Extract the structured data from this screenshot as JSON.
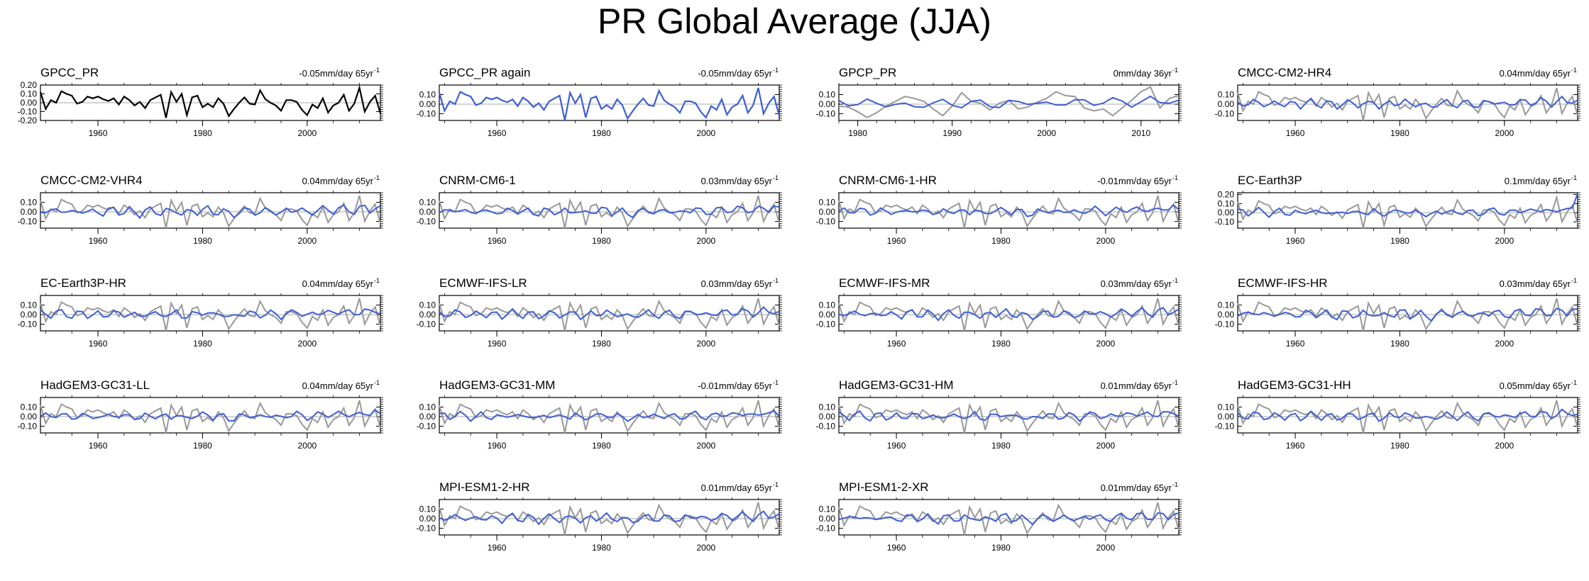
{
  "title": "PR Global Average (JJA)",
  "colors": {
    "obs": "#000000",
    "model_obs": "#999999",
    "model": "#3d5fd6",
    "zero_line": "#aaaaaa"
  },
  "chart_data": [
    {
      "type": "line",
      "title": "GPCC_PR",
      "trend_value": "-0.05mm/day 65yr",
      "trend_exp": "-1",
      "obs_only": true,
      "xlim": [
        1949,
        2014
      ],
      "ylim": [
        -0.2,
        0.2
      ],
      "yticks": [
        "0.20",
        "0.10",
        "0.00",
        "-0.10",
        "-0.20"
      ],
      "xticks": [
        1960,
        1980,
        2000
      ],
      "model_scale": 0
    },
    {
      "type": "line",
      "title": "GPCC_PR again",
      "trend_value": "-0.05mm/day 65yr",
      "trend_exp": "-1",
      "obs_only": true,
      "obs_color": "model",
      "xlim": [
        1949,
        2014
      ],
      "ylim": [
        -0.17,
        0.2
      ],
      "yticks": [
        "0.10",
        "0.00",
        "-0.10"
      ],
      "xticks": [
        1960,
        1980,
        2000
      ],
      "model_scale": 0
    },
    {
      "type": "line",
      "title": "GPCP_PR",
      "trend_value": "0mm/day 36yr",
      "trend_exp": "-1",
      "xlim": [
        1978,
        2014
      ],
      "ylim": [
        -0.17,
        0.2
      ],
      "yticks": [
        "0.10",
        "0.00",
        "-0.10"
      ],
      "xticks": [
        1980,
        1990,
        2000,
        2010
      ],
      "model_scale": 0.32
    },
    {
      "type": "line",
      "title": "CMCC-CM2-HR4",
      "trend_value": "0.04mm/day 65yr",
      "trend_exp": "-1",
      "xlim": [
        1949,
        2014
      ],
      "ylim": [
        -0.17,
        0.2
      ],
      "yticks": [
        "0.10",
        "0.00",
        "-0.10"
      ],
      "xticks": [
        1960,
        1980,
        2000
      ],
      "model_scale": 0.3
    },
    {
      "type": "line",
      "title": "CMCC-CM2-VHR4",
      "trend_value": "0.04mm/day 65yr",
      "trend_exp": "-1",
      "xlim": [
        1949,
        2014
      ],
      "ylim": [
        -0.17,
        0.2
      ],
      "yticks": [
        "0.10",
        "0.00",
        "-0.10"
      ],
      "xticks": [
        1960,
        1980,
        2000
      ],
      "model_scale": 0.35
    },
    {
      "type": "line",
      "title": "CNRM-CM6-1",
      "trend_value": "0.03mm/day 65yr",
      "trend_exp": "-1",
      "xlim": [
        1949,
        2014
      ],
      "ylim": [
        -0.17,
        0.2
      ],
      "yticks": [
        "0.10",
        "0.00",
        "-0.10"
      ],
      "xticks": [
        1960,
        1980,
        2000
      ],
      "model_scale": 0.3
    },
    {
      "type": "line",
      "title": "CNRM-CM6-1-HR",
      "trend_value": "-0.01mm/day 65yr",
      "trend_exp": "-1",
      "xlim": [
        1949,
        2014
      ],
      "ylim": [
        -0.17,
        0.2
      ],
      "yticks": [
        "0.10",
        "0.00",
        "-0.10"
      ],
      "xticks": [
        1960,
        1980,
        2000
      ],
      "model_scale": 0.3
    },
    {
      "type": "line",
      "title": "EC-Earth3P",
      "trend_value": "0.1mm/day 65yr",
      "trend_exp": "-1",
      "xlim": [
        1949,
        2014
      ],
      "ylim": [
        -0.17,
        0.22
      ],
      "yticks": [
        "0.20",
        "0.10",
        "0.00",
        "-0.10"
      ],
      "xticks": [
        1960,
        1980,
        2000
      ],
      "model_scale": 0.3
    },
    {
      "type": "line",
      "title": "EC-Earth3P-HR",
      "trend_value": "0.04mm/day 65yr",
      "trend_exp": "-1",
      "xlim": [
        1949,
        2014
      ],
      "ylim": [
        -0.17,
        0.2
      ],
      "yticks": [
        "0.10",
        "0.00",
        "-0.10"
      ],
      "xticks": [
        1960,
        1980,
        2000
      ],
      "model_scale": 0.3
    },
    {
      "type": "line",
      "title": "ECMWF-IFS-LR",
      "trend_value": "0.03mm/day 65yr",
      "trend_exp": "-1",
      "xlim": [
        1949,
        2014
      ],
      "ylim": [
        -0.17,
        0.2
      ],
      "yticks": [
        "0.10",
        "0.00",
        "-0.10"
      ],
      "xticks": [
        1960,
        1980,
        2000
      ],
      "model_scale": 0.3
    },
    {
      "type": "line",
      "title": "ECMWF-IFS-MR",
      "trend_value": "0.03mm/day 65yr",
      "trend_exp": "-1",
      "xlim": [
        1949,
        2014
      ],
      "ylim": [
        -0.17,
        0.2
      ],
      "yticks": [
        "0.10",
        "0.00",
        "-0.10"
      ],
      "xticks": [
        1960,
        1980,
        2000
      ],
      "model_scale": 0.3
    },
    {
      "type": "line",
      "title": "ECMWF-IFS-HR",
      "trend_value": "0.03mm/day 65yr",
      "trend_exp": "-1",
      "xlim": [
        1949,
        2014
      ],
      "ylim": [
        -0.17,
        0.2
      ],
      "yticks": [
        "0.10",
        "0.00",
        "-0.10"
      ],
      "xticks": [
        1960,
        1980,
        2000
      ],
      "model_scale": 0.35
    },
    {
      "type": "line",
      "title": "HadGEM3-GC31-LL",
      "trend_value": "0.04mm/day 65yr",
      "trend_exp": "-1",
      "xlim": [
        1949,
        2014
      ],
      "ylim": [
        -0.17,
        0.2
      ],
      "yticks": [
        "0.10",
        "0.00",
        "-0.10"
      ],
      "xticks": [
        1960,
        1980,
        2000
      ],
      "model_scale": 0.3
    },
    {
      "type": "line",
      "title": "HadGEM3-GC31-MM",
      "trend_value": "-0.01mm/day 65yr",
      "trend_exp": "-1",
      "xlim": [
        1949,
        2014
      ],
      "ylim": [
        -0.17,
        0.2
      ],
      "yticks": [
        "0.10",
        "0.00",
        "-0.10"
      ],
      "xticks": [
        1960,
        1980,
        2000
      ],
      "model_scale": 0.3
    },
    {
      "type": "line",
      "title": "HadGEM3-GC31-HM",
      "trend_value": "0.01mm/day 65yr",
      "trend_exp": "-1",
      "xlim": [
        1949,
        2014
      ],
      "ylim": [
        -0.17,
        0.2
      ],
      "yticks": [
        "0.10",
        "0.00",
        "-0.10"
      ],
      "xticks": [
        1960,
        1980,
        2000
      ],
      "model_scale": 0.3
    },
    {
      "type": "line",
      "title": "HadGEM3-GC31-HH",
      "trend_value": "0.05mm/day 65yr",
      "trend_exp": "-1",
      "xlim": [
        1949,
        2014
      ],
      "ylim": [
        -0.17,
        0.2
      ],
      "yticks": [
        "0.10",
        "0.00",
        "-0.10"
      ],
      "xticks": [
        1960,
        1980,
        2000
      ],
      "model_scale": 0.3
    },
    {
      "type": "line",
      "title": "MPI-ESM1-2-HR",
      "trend_value": "0.01mm/day 65yr",
      "trend_exp": "-1",
      "xlim": [
        1949,
        2014
      ],
      "ylim": [
        -0.17,
        0.2
      ],
      "yticks": [
        "0.10",
        "0.00",
        "-0.10"
      ],
      "xticks": [
        1960,
        1980,
        2000
      ],
      "model_scale": 0.3
    },
    {
      "type": "line",
      "title": "MPI-ESM1-2-XR",
      "trend_value": "0.01mm/day 65yr",
      "trend_exp": "-1",
      "xlim": [
        1949,
        2014
      ],
      "ylim": [
        -0.17,
        0.2
      ],
      "yticks": [
        "0.10",
        "0.00",
        "-0.10"
      ],
      "xticks": [
        1960,
        1980,
        2000
      ],
      "model_scale": 0.3
    }
  ],
  "obs_series_gpcc": {
    "x_start": 1949,
    "values": [
      0.12,
      -0.07,
      0.03,
      0.0,
      0.13,
      0.1,
      0.08,
      -0.01,
      0.01,
      0.07,
      0.05,
      0.07,
      0.04,
      0.02,
      0.05,
      -0.02,
      0.07,
      0.03,
      -0.03,
      0.01,
      -0.06,
      0.03,
      0.06,
      0.09,
      -0.17,
      0.12,
      0.01,
      0.1,
      -0.14,
      0.06,
      0.08,
      -0.05,
      -0.01,
      -0.05,
      0.05,
      -0.01,
      -0.15,
      -0.07,
      0.0,
      0.06,
      -0.01,
      -0.02,
      0.14,
      0.04,
      0.0,
      -0.03,
      -0.09,
      0.03,
      0.03,
      0.01,
      -0.08,
      -0.14,
      -0.02,
      -0.06,
      0.05,
      -0.11,
      -0.03,
      0.0,
      0.09,
      -0.09,
      -0.01,
      0.17,
      -0.1,
      0.01,
      0.08,
      -0.12
    ]
  },
  "obs_series_gpcp": {
    "x_start": 1978,
    "values": [
      -0.02,
      -0.03,
      -0.08,
      -0.14,
      -0.09,
      -0.02,
      0.03,
      0.08,
      0.06,
      0.03,
      -0.05,
      -0.12,
      -0.02,
      0.12,
      0.03,
      0.01,
      -0.06,
      0.01,
      0.04,
      -0.05,
      -0.03,
      0.02,
      0.06,
      0.13,
      0.09,
      0.08,
      -0.04,
      -0.07,
      -0.05,
      -0.12,
      -0.04,
      0.04,
      0.13,
      0.18,
      -0.04,
      0.06,
      0.09,
      -0.11
    ]
  },
  "model_series_base": [
    0.02,
    0.01,
    -0.01,
    0.02,
    0.03,
    0.0,
    -0.02,
    0.01,
    0.02,
    -0.01,
    0.0,
    0.01,
    -0.02,
    0.01,
    0.03,
    0.0,
    -0.01,
    0.02,
    0.0,
    -0.03,
    0.01,
    0.02,
    0.0,
    -0.01,
    0.01,
    0.0,
    0.02,
    -0.02,
    -0.01,
    0.01,
    0.0,
    0.02,
    0.03,
    -0.01,
    0.0,
    0.01,
    -0.02,
    -0.03,
    0.0,
    0.01,
    0.02,
    0.0,
    -0.01,
    0.01,
    0.02,
    0.0,
    -0.02,
    0.01,
    0.02,
    0.03,
    0.01,
    -0.01,
    0.0,
    0.02,
    0.03,
    0.02,
    0.01,
    0.03,
    0.04,
    0.02,
    0.0,
    0.03,
    0.05,
    0.02,
    0.04,
    0.03
  ]
}
